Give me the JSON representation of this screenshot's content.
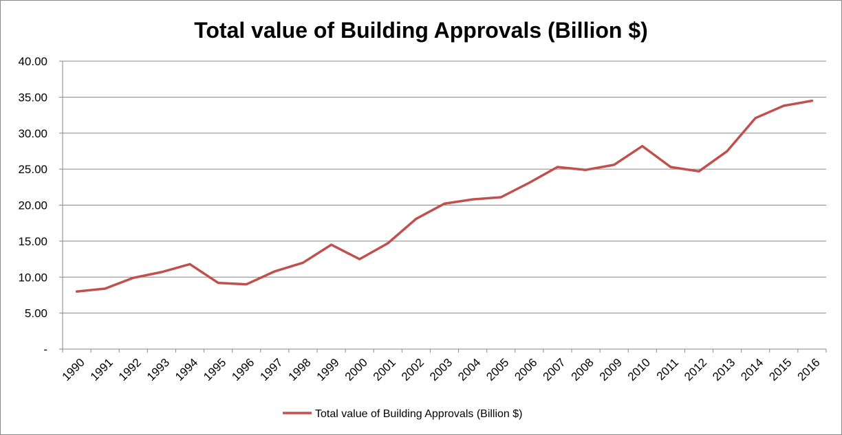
{
  "chart_data": {
    "type": "line",
    "title": "Total value of Building Approvals (Billion $)",
    "xlabel": "",
    "ylabel": "",
    "categories": [
      "1990",
      "1991",
      "1992",
      "1993",
      "1994",
      "1995",
      "1996",
      "1997",
      "1998",
      "1999",
      "2000",
      "2001",
      "2002",
      "2003",
      "2004",
      "2005",
      "2006",
      "2007",
      "2008",
      "2009",
      "2010",
      "2011",
      "2012",
      "2013",
      "2014",
      "2015",
      "2016"
    ],
    "series": [
      {
        "name": "Total value of Building Approvals (Billion $)",
        "color": "#C0504D",
        "values": [
          8.0,
          8.4,
          9.9,
          10.7,
          11.8,
          9.2,
          9.0,
          10.8,
          12.0,
          14.5,
          12.5,
          14.7,
          18.1,
          20.2,
          20.8,
          21.1,
          23.1,
          25.3,
          24.9,
          25.6,
          28.2,
          25.3,
          24.7,
          27.5,
          32.1,
          33.8,
          34.5
        ]
      }
    ],
    "ylim": [
      0,
      40
    ],
    "yticks": [
      "-",
      "5.00",
      "10.00",
      "15.00",
      "20.00",
      "25.00",
      "30.00",
      "35.00",
      "40.00"
    ],
    "grid": true,
    "legend": "bottom"
  }
}
